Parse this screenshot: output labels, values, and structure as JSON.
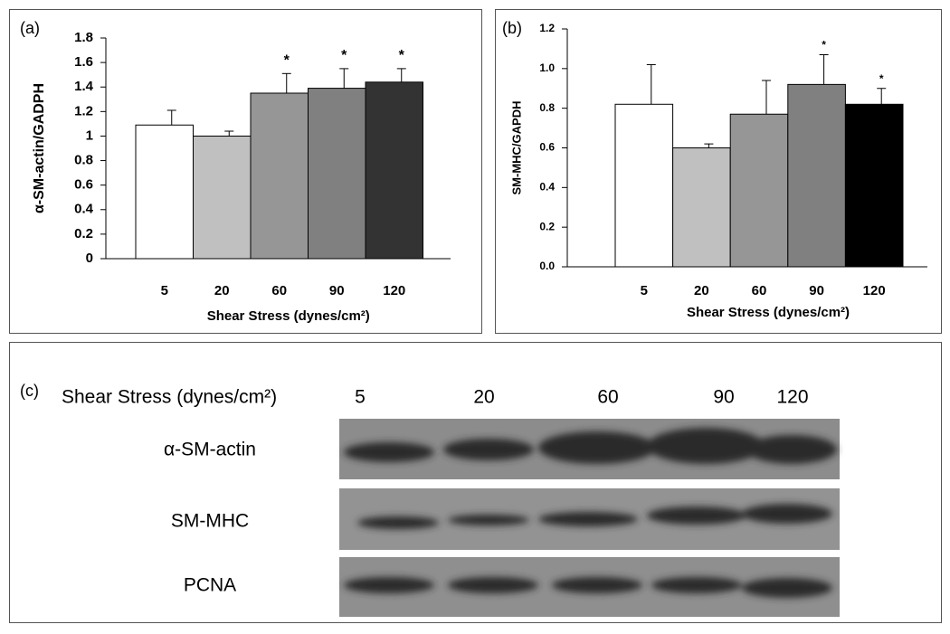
{
  "chart_data": [
    {
      "type": "bar",
      "panel": "(a)",
      "y_label": "α-SM-actin/GADPH",
      "x_label": "Shear Stress (dynes/cm²)",
      "categories": [
        "5",
        "20",
        "60",
        "90",
        "120"
      ],
      "values": [
        1.09,
        1.0,
        1.35,
        1.39,
        1.44
      ],
      "errors": [
        0.12,
        0.04,
        0.16,
        0.16,
        0.11
      ],
      "colors": [
        "#ffffff",
        "#c0c0c0",
        "#969696",
        "#808080",
        "#333333"
      ],
      "annotations": [
        null,
        null,
        "*",
        "*",
        "*"
      ],
      "ylim": [
        0,
        1.8
      ],
      "yticks": [
        0,
        0.2,
        0.4,
        0.6,
        0.8,
        1,
        1.2,
        1.4,
        1.6,
        1.8
      ]
    },
    {
      "type": "bar",
      "panel": "(b)",
      "y_label": "SM-MHC/GAPDH",
      "x_label": "Shear Stress (dynes/cm²)",
      "categories": [
        "5",
        "20",
        "60",
        "90",
        "120"
      ],
      "values": [
        0.82,
        0.6,
        0.77,
        0.92,
        0.82
      ],
      "errors": [
        0.2,
        0.02,
        0.17,
        0.15,
        0.08
      ],
      "colors": [
        "#ffffff",
        "#c0c0c0",
        "#969696",
        "#808080",
        "#000000"
      ],
      "annotations": [
        null,
        null,
        null,
        "*",
        "*"
      ],
      "ylim": [
        0,
        1.2
      ],
      "yticks": [
        {
          "value": 0,
          "label": "0.0"
        },
        {
          "value": 0.2,
          "label": "0.2"
        },
        {
          "value": 0.4,
          "label": "0.4"
        },
        {
          "value": 0.6,
          "label": "0.6"
        },
        {
          "value": 0.8,
          "label": "0.8"
        },
        {
          "value": 1.0,
          "label": "1.0"
        },
        {
          "value": 1.2,
          "label": "1.2"
        }
      ]
    }
  ],
  "blot": {
    "panel": "(c)",
    "header": "Shear Stress (dynes/cm²)",
    "lanes": [
      "5",
      "20",
      "60",
      "90",
      "120"
    ],
    "rows": [
      "α-SM-actin",
      "SM-MHC",
      "PCNA"
    ]
  }
}
